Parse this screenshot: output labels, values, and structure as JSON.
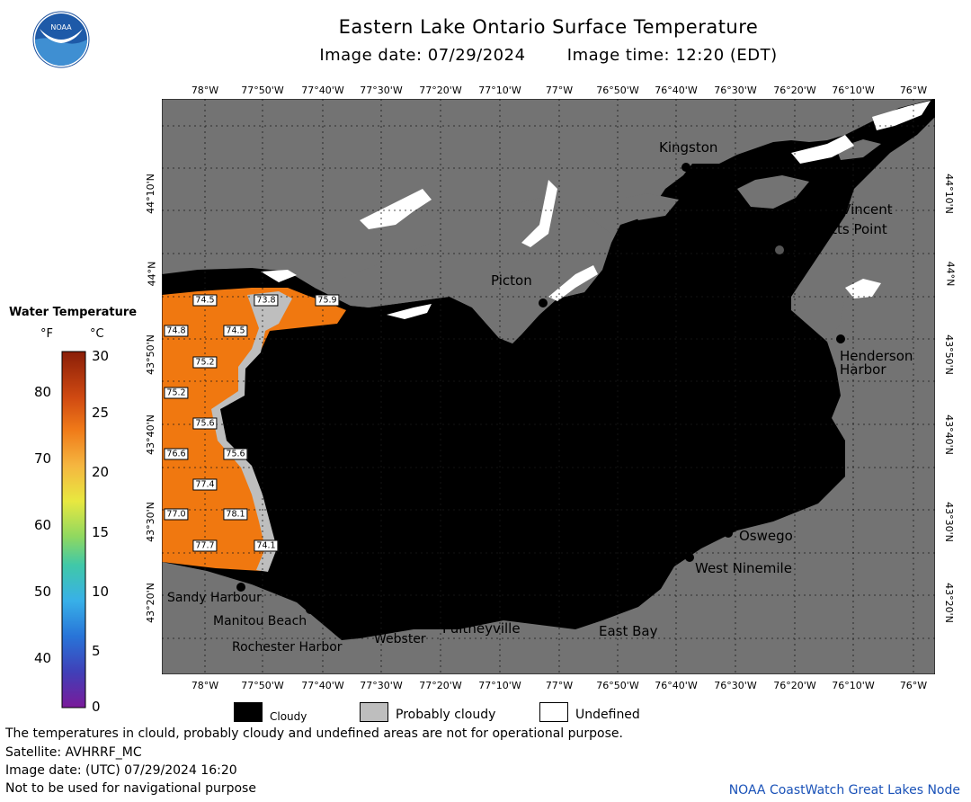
{
  "header": {
    "title": "Eastern Lake Ontario Surface Temperature",
    "image_date": "Image date: 07/29/2024",
    "image_time": "Image time: 12:20 (EDT)"
  },
  "logo": {
    "text": "NOAA"
  },
  "map": {
    "longitudes_top": [
      "78°W",
      "77°50'W",
      "77°40'W",
      "77°30'W",
      "77°20'W",
      "77°10'W",
      "77°W",
      "76°50'W",
      "76°40'W",
      "76°30'W",
      "76°20'W",
      "76°10'W",
      "76°W"
    ],
    "longitudes_bottom": [
      "78°W",
      "77°50'W",
      "77°40'W",
      "77°30'W",
      "77°20'W",
      "77°10'W",
      "77°W",
      "76°50'W",
      "76°40'W",
      "76°30'W",
      "76°20'W",
      "76°10'W",
      "76°W"
    ],
    "latitudes": [
      "44°10'N",
      "44°N",
      "43°50'N",
      "43°40'N",
      "43°30'N",
      "43°20'N"
    ],
    "places": {
      "kingston": "Kingston",
      "cape_vincent": "Cape Vincent",
      "tibbetts_point": "Tibbetts Point",
      "picton": "Picton",
      "henderson_harbor_1": "Henderson",
      "henderson_harbor_2": "Harbor",
      "oswego": "Oswego",
      "west_ninemile": "West Ninemile",
      "sandy_harbour": "Sandy Harbour",
      "manitou_beach": "Manitou Beach",
      "rochester_harbor": "Rochester Harbor",
      "webster": "Webster",
      "pultneyville": "Pultneyville",
      "east_bay": "East Bay"
    },
    "temperature_labels": [
      "74.5",
      "73.8",
      "75.9",
      "74.8",
      "74.5",
      "75.2",
      "75.2",
      "75.6",
      "76.6",
      "75.6",
      "77.4",
      "77.0",
      "78.1",
      "77.7",
      "74.1"
    ],
    "colors": {
      "land": "#737373",
      "cloudy": "#000000",
      "probably_cloudy": "#bebebe",
      "undefined": "#ffffff",
      "warm_water": "#f07810",
      "grid": "#1a1a1a"
    }
  },
  "legend": {
    "title": "Water Temperature",
    "unit_f": "°F",
    "unit_c": "°C",
    "f_ticks": [
      "80",
      "70",
      "60",
      "50",
      "40"
    ],
    "c_ticks": [
      "30",
      "25",
      "20",
      "15",
      "10",
      "5",
      "0"
    ]
  },
  "key": {
    "cloudy": "Cloudy",
    "probably_cloudy": "Probably cloudy",
    "undefined": "Undefined"
  },
  "footer": {
    "disclaimer": "The temperatures in clould, probably cloudy and undefined areas are not for operational purpose.",
    "satellite": "Satellite: AVHRRF_MC",
    "utc_date": "Image date: (UTC) 07/29/2024  16:20",
    "nav_warning": "Not to be used for navigational purpose",
    "credit": "NOAA CoastWatch Great Lakes Node"
  }
}
